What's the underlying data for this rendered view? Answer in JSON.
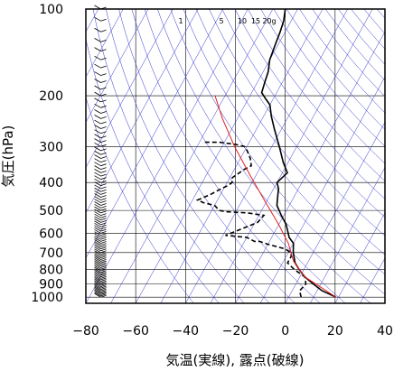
{
  "chart_data": {
    "type": "line",
    "title": "",
    "xlabel": "気温(実線), 露点(破線)",
    "ylabel": "気圧(hPa)",
    "xlim": [
      -80,
      40
    ],
    "ylim": [
      1050,
      100
    ],
    "y_scale": "log",
    "grid": true,
    "x_ticks": [
      -80,
      -60,
      -40,
      -20,
      0,
      20,
      40
    ],
    "x_tick_labels": [
      "−80",
      "−60",
      "−40",
      "−20",
      "0",
      "20",
      "40"
    ],
    "y_ticks": [
      100,
      200,
      300,
      400,
      500,
      600,
      700,
      800,
      900,
      1000
    ],
    "y_tick_labels": [
      "100",
      "200",
      "300",
      "400",
      "500",
      "600",
      "700",
      "800",
      "900",
      "1000"
    ],
    "mixing_ratio_labels": [
      "1",
      "5",
      "10",
      "15",
      "20g"
    ],
    "mixing_ratio_values_g_per_kg": [
      1,
      5,
      10,
      15,
      20
    ],
    "series": [
      {
        "style": "solid-black",
        "points": [
          [
            19,
            1000
          ],
          [
            12,
            950
          ],
          [
            7,
            900
          ],
          [
            2,
            850
          ],
          [
            -2,
            800
          ],
          [
            -5,
            760
          ],
          [
            -8,
            700
          ],
          [
            -10,
            650
          ],
          [
            -13,
            620
          ],
          [
            -17,
            560
          ],
          [
            -21,
            520
          ],
          [
            -25,
            480
          ],
          [
            -27,
            440
          ],
          [
            -28,
            420
          ],
          [
            -30,
            400
          ],
          [
            -28,
            370
          ],
          [
            -32,
            340
          ],
          [
            -37,
            300
          ],
          [
            -43,
            260
          ],
          [
            -47,
            235
          ],
          [
            -50,
            215
          ],
          [
            -53,
            205
          ],
          [
            -56,
            195
          ],
          [
            -57,
            180
          ],
          [
            -58,
            165
          ],
          [
            -60,
            150
          ],
          [
            -61,
            135
          ],
          [
            -62,
            120
          ],
          [
            -63,
            110
          ],
          [
            -65,
            100
          ]
        ]
      },
      {
        "style": "dashed-black",
        "points": [
          [
            5,
            1000
          ],
          [
            3,
            950
          ],
          [
            4,
            900
          ],
          [
            2,
            850
          ],
          [
            -4,
            800
          ],
          [
            -8,
            760
          ],
          [
            -8,
            720
          ],
          [
            -9,
            700
          ],
          [
            -12,
            680
          ],
          [
            -20,
            655
          ],
          [
            -24,
            640
          ],
          [
            -26,
            640
          ],
          [
            -30,
            620
          ],
          [
            -39,
            610
          ],
          [
            -34,
            580
          ],
          [
            -29,
            550
          ],
          [
            -28,
            520
          ],
          [
            -35,
            510
          ],
          [
            -44,
            505
          ],
          [
            -47,
            500
          ],
          [
            -50,
            480
          ],
          [
            -55,
            470
          ],
          [
            -58,
            460
          ],
          [
            -54,
            440
          ],
          [
            -51,
            420
          ],
          [
            -49,
            410
          ],
          [
            -48,
            400
          ],
          [
            -49,
            385
          ],
          [
            -46,
            360
          ],
          [
            -44,
            350
          ],
          [
            -46,
            330
          ],
          [
            -49,
            310
          ],
          [
            -51,
            300
          ],
          [
            -55,
            295
          ],
          [
            -62,
            290
          ],
          [
            -68,
            290
          ]
        ]
      },
      {
        "style": "solid-red",
        "points": [
          [
            19,
            1000
          ],
          [
            2,
            850
          ],
          [
            -6,
            750
          ],
          [
            -12,
            650
          ],
          [
            -20,
            560
          ],
          [
            -30,
            470
          ],
          [
            -42,
            380
          ],
          [
            -55,
            300
          ],
          [
            -66,
            240
          ],
          [
            -74,
            200
          ]
        ]
      }
    ],
    "wind_barbs": {
      "description": "vertical column of wind barbs along left edge",
      "x_position_data": -74
    }
  }
}
